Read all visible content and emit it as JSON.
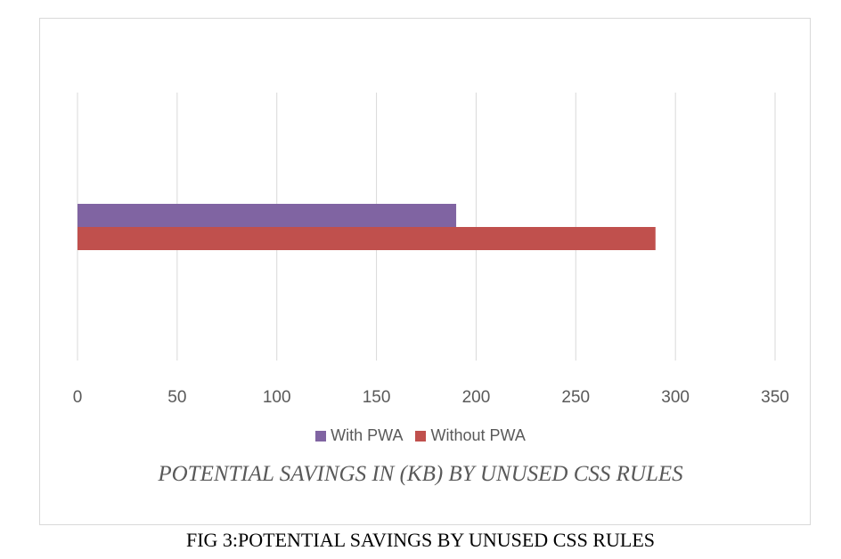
{
  "chart_data": {
    "type": "bar",
    "orientation": "horizontal",
    "categories": [
      ""
    ],
    "series": [
      {
        "name": "With PWA",
        "values": [
          190
        ],
        "color": "#8064a2"
      },
      {
        "name": "Without PWA",
        "values": [
          290
        ],
        "color": "#c0504d"
      }
    ],
    "title": "",
    "xlabel": "POTENTIAL SAVINGS IN (KB) BY UNUSED CSS RULES",
    "ylabel": "",
    "xlim": [
      0,
      350
    ],
    "xticks": [
      0,
      50,
      100,
      150,
      200,
      250,
      300,
      350
    ],
    "grid": "vertical",
    "legend_position": "bottom"
  },
  "caption": "FIG 3:POTENTIAL SAVINGS BY UNUSED CSS RULES"
}
